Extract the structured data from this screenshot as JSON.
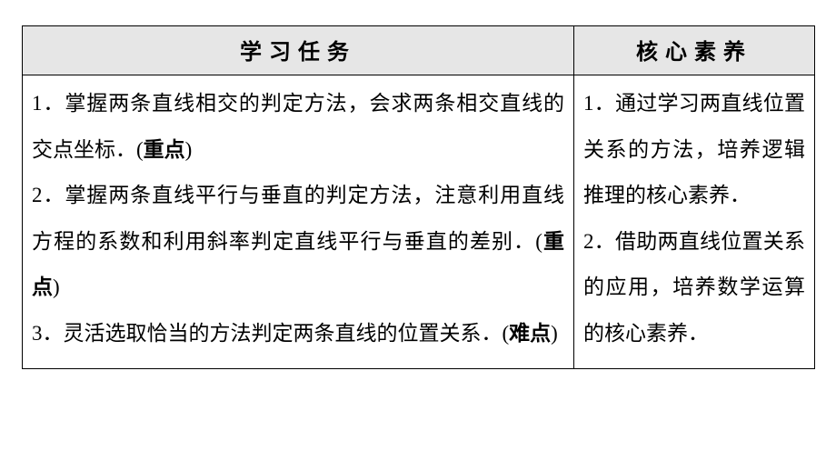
{
  "table": {
    "headers": {
      "left": "学习任务",
      "right": "核心素养"
    },
    "left": {
      "item1_pre": "1．掌握两条直线相交的判定方法，会求两条相交直线的交点坐标．(",
      "item1_bold": "重点",
      "item1_post": ")",
      "item2_pre": "2．掌握两条直线平行与垂直的判定方法，注意利用直线方程的系数和利用斜率判定直线平行与垂直的差别．(",
      "item2_bold": "重点",
      "item2_post": ")",
      "item3_pre": "3．灵活选取恰当的方法判定两条直线的位置关系．(",
      "item3_bold": "难点",
      "item3_post": ")"
    },
    "right": {
      "item1": "1．通过学习两直线位置关系的方法，培养逻辑推理的核心素养．",
      "item2": "2．借助两直线位置关系的应用，培养数学运算的核心素养．"
    }
  },
  "style": {
    "header_bg": "#e6e6e6",
    "border_color": "#000000",
    "text_color": "#000000",
    "font_size_header": 24,
    "font_size_body": 23,
    "line_height_body": 2.2,
    "letter_spacing_header": 8
  }
}
